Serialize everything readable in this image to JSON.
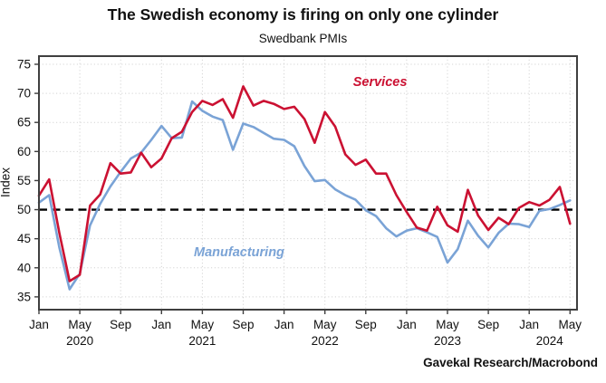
{
  "title": "The Swedish economy is firing on only one cylinder",
  "subtitle": "Swedbank PMIs",
  "source": "Gavekal Research/Macrobond",
  "colors": {
    "services": "#cb1132",
    "manufacturing": "#7aa3d6",
    "baseline": "#000000",
    "grid": "#d4d4d4",
    "frame": "#3f3f3f",
    "text": "#111111"
  },
  "chart_data": {
    "type": "line",
    "title": "Swedbank PMIs",
    "xlabel": "",
    "ylabel": "Index",
    "ylim": [
      32.8,
      76.4
    ],
    "yticks": [
      35,
      40,
      45,
      50,
      55,
      60,
      65,
      70,
      75
    ],
    "baseline_value": 50,
    "grid": true,
    "legend_position": "inline-annotations",
    "x": [
      "2020-01",
      "2020-02",
      "2020-03",
      "2020-04",
      "2020-05",
      "2020-06",
      "2020-07",
      "2020-08",
      "2020-09",
      "2020-10",
      "2020-11",
      "2020-12",
      "2021-01",
      "2021-02",
      "2021-03",
      "2021-04",
      "2021-05",
      "2021-06",
      "2021-07",
      "2021-08",
      "2021-09",
      "2021-10",
      "2021-11",
      "2021-12",
      "2022-01",
      "2022-02",
      "2022-03",
      "2022-04",
      "2022-05",
      "2022-06",
      "2022-07",
      "2022-08",
      "2022-09",
      "2022-10",
      "2022-11",
      "2022-12",
      "2023-01",
      "2023-02",
      "2023-03",
      "2023-04",
      "2023-05",
      "2023-06",
      "2023-07",
      "2023-08",
      "2023-09",
      "2023-10",
      "2023-11",
      "2023-12",
      "2024-01",
      "2024-02",
      "2024-03",
      "2024-04",
      "2024-05"
    ],
    "xticks": [
      {
        "i": 0,
        "label": "Jan"
      },
      {
        "i": 4,
        "label": "May"
      },
      {
        "i": 8,
        "label": "Sep"
      },
      {
        "i": 12,
        "label": "Jan"
      },
      {
        "i": 16,
        "label": "May"
      },
      {
        "i": 20,
        "label": "Sep"
      },
      {
        "i": 24,
        "label": "Jan"
      },
      {
        "i": 28,
        "label": "May"
      },
      {
        "i": 32,
        "label": "Sep"
      },
      {
        "i": 36,
        "label": "Jan"
      },
      {
        "i": 40,
        "label": "May"
      },
      {
        "i": 44,
        "label": "Sep"
      },
      {
        "i": 48,
        "label": "Jan"
      },
      {
        "i": 52,
        "label": "May"
      }
    ],
    "year_labels": [
      {
        "i": 4,
        "label": "2020"
      },
      {
        "i": 16,
        "label": "2021"
      },
      {
        "i": 28,
        "label": "2022"
      },
      {
        "i": 40,
        "label": "2023"
      },
      {
        "i": 50,
        "label": "2024"
      }
    ],
    "series": [
      {
        "name": "Services",
        "color": "#cb1132",
        "values": [
          52.4,
          55.2,
          46.0,
          37.7,
          38.8,
          50.7,
          52.6,
          58.0,
          56.2,
          56.4,
          59.8,
          57.3,
          58.8,
          62.3,
          63.4,
          66.8,
          68.7,
          68.0,
          69.0,
          65.8,
          71.2,
          67.9,
          68.7,
          68.2,
          67.3,
          67.7,
          65.6,
          61.5,
          66.8,
          64.3,
          59.5,
          57.7,
          58.6,
          56.2,
          56.2,
          52.5,
          49.6,
          46.9,
          46.4,
          50.5,
          47.3,
          46.2,
          53.4,
          49.0,
          46.5,
          48.6,
          47.5,
          50.3,
          51.3,
          50.7,
          51.7,
          53.9,
          47.6
        ]
      },
      {
        "name": "Manufacturing",
        "color": "#7aa3d6",
        "values": [
          51.2,
          52.5,
          43.5,
          36.3,
          39.0,
          47.3,
          51.0,
          54.0,
          56.5,
          58.8,
          59.8,
          62.0,
          64.4,
          62.3,
          62.4,
          68.6,
          67.0,
          66.0,
          65.4,
          60.3,
          64.8,
          64.2,
          63.2,
          62.2,
          62.0,
          60.9,
          57.5,
          54.9,
          55.1,
          53.5,
          52.5,
          51.7,
          49.9,
          48.9,
          46.8,
          45.4,
          46.4,
          46.8,
          46.1,
          45.3,
          40.9,
          43.2,
          48.1,
          45.5,
          43.5,
          46.0,
          47.6,
          47.5,
          47.0,
          49.8,
          50.1,
          50.8,
          51.6
        ]
      }
    ],
    "annotations": [
      {
        "text": "Services",
        "x_index": 33.4,
        "value": 71.3,
        "series": "Services"
      },
      {
        "text": "Manufacturing",
        "x_index": 19.6,
        "value": 42.0,
        "series": "Manufacturing"
      }
    ]
  }
}
